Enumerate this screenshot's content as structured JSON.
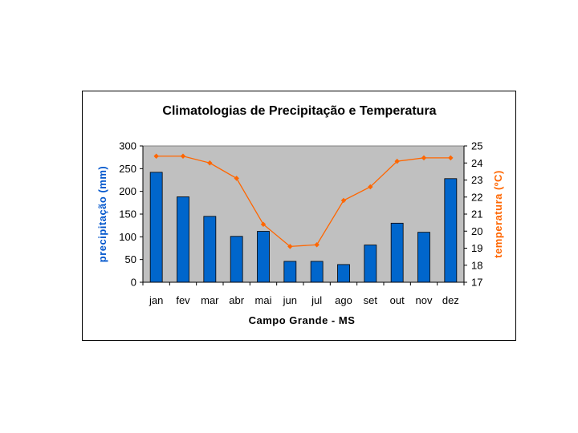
{
  "chart_data": {
    "type": "bar+line",
    "title": "Climatologias de Precipitação e Temperatura",
    "xlabel": "Campo Grande - MS",
    "categories": [
      "jan",
      "fev",
      "mar",
      "abr",
      "mai",
      "jun",
      "jul",
      "ago",
      "set",
      "out",
      "nov",
      "dez"
    ],
    "series": [
      {
        "name": "precipitação (mm)",
        "type": "bar",
        "axis": "left",
        "color": "#0066cc",
        "values": [
          242,
          188,
          145,
          101,
          112,
          46,
          46,
          39,
          82,
          130,
          110,
          228
        ]
      },
      {
        "name": "temperatura (ºC)",
        "type": "line",
        "axis": "right",
        "color": "#ff6600",
        "values": [
          24.4,
          24.4,
          24.0,
          23.1,
          20.4,
          19.1,
          19.2,
          21.8,
          22.6,
          24.1,
          24.3,
          24.3
        ]
      }
    ],
    "ylabel_left": "precipitação (mm)",
    "ylim_left": [
      0,
      300
    ],
    "yticks_left": [
      0,
      50,
      100,
      150,
      200,
      250,
      300
    ],
    "ylabel_right": "temperatura (ºC)",
    "ylim_right": [
      17,
      25
    ],
    "yticks_right": [
      17,
      18,
      19,
      20,
      21,
      22,
      23,
      24,
      25
    ],
    "plot_background": "#c0c0c0",
    "grid": false
  }
}
